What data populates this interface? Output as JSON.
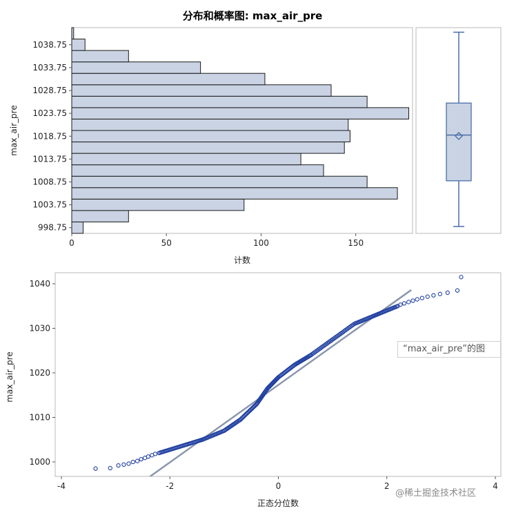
{
  "title": "分布和概率图: max_air_pre",
  "watermark": "@稀土掘金技术社区",
  "chart_data": [
    {
      "type": "bar",
      "orientation": "horizontal",
      "name": "histogram",
      "ylabel": "max_air_pre",
      "xlabel": "计数",
      "bin_width": 2.5,
      "bins": [
        {
          "mid": 998.75,
          "count": 6
        },
        {
          "mid": 1001.25,
          "count": 30
        },
        {
          "mid": 1003.75,
          "count": 91
        },
        {
          "mid": 1006.25,
          "count": 172
        },
        {
          "mid": 1008.75,
          "count": 156
        },
        {
          "mid": 1011.25,
          "count": 133
        },
        {
          "mid": 1013.75,
          "count": 121
        },
        {
          "mid": 1016.25,
          "count": 144
        },
        {
          "mid": 1018.75,
          "count": 147
        },
        {
          "mid": 1021.25,
          "count": 146
        },
        {
          "mid": 1023.75,
          "count": 178
        },
        {
          "mid": 1026.25,
          "count": 156
        },
        {
          "mid": 1028.75,
          "count": 137
        },
        {
          "mid": 1031.25,
          "count": 102
        },
        {
          "mid": 1033.75,
          "count": 68
        },
        {
          "mid": 1036.25,
          "count": 30
        },
        {
          "mid": 1038.75,
          "count": 7
        },
        {
          "mid": 1041.25,
          "count": 1
        }
      ],
      "y_ticks": [
        998.75,
        1003.75,
        1008.75,
        1013.75,
        1018.75,
        1023.75,
        1028.75,
        1033.75,
        1038.75
      ],
      "x_ticks": [
        0,
        50,
        100,
        150
      ],
      "xlim": [
        0,
        180
      ],
      "ylim": [
        997.5,
        1042.5
      ],
      "colors": {
        "fill": "#c9d3e3",
        "stroke": "#1a1a1a"
      }
    },
    {
      "type": "boxplot",
      "name": "boxplot",
      "min": 999,
      "q1": 1009,
      "median": 1019,
      "mean": 1018.8,
      "q3": 1026,
      "max": 1041.5,
      "ylim": [
        997.5,
        1042.5
      ],
      "colors": {
        "fill": "#c9d3e3",
        "stroke": "#4a6ea8"
      }
    },
    {
      "type": "scatter",
      "name": "normal-probability-plot",
      "xlabel": "正态分位数",
      "ylabel": "max_air_pre",
      "legend": "“max_air_pre”的图",
      "x_ticks": [
        -4,
        -2,
        0,
        2,
        4
      ],
      "y_ticks": [
        1000,
        1010,
        1020,
        1030,
        1040
      ],
      "xlim": [
        -4,
        4
      ],
      "ylim": [
        997,
        1043
      ],
      "reference_line": {
        "intercept": 1017.3,
        "slope": 8.7
      },
      "quantile_curve": [
        {
          "x": -2.2,
          "y": 1002.0
        },
        {
          "x": -1.8,
          "y": 1003.5
        },
        {
          "x": -1.4,
          "y": 1005.0
        },
        {
          "x": -1.0,
          "y": 1007.0
        },
        {
          "x": -0.7,
          "y": 1009.5
        },
        {
          "x": -0.4,
          "y": 1013.0
        },
        {
          "x": -0.2,
          "y": 1016.5
        },
        {
          "x": 0.0,
          "y": 1019.0
        },
        {
          "x": 0.3,
          "y": 1021.8
        },
        {
          "x": 0.6,
          "y": 1024.0
        },
        {
          "x": 1.0,
          "y": 1027.5
        },
        {
          "x": 1.4,
          "y": 1031.0
        },
        {
          "x": 1.8,
          "y": 1033.0
        },
        {
          "x": 2.2,
          "y": 1035.0
        }
      ],
      "tail_points": [
        {
          "x": -3.37,
          "y": 998.5
        },
        {
          "x": -3.1,
          "y": 998.6
        },
        {
          "x": -2.95,
          "y": 999.2
        },
        {
          "x": -2.85,
          "y": 999.4
        },
        {
          "x": -2.76,
          "y": 999.6
        },
        {
          "x": -2.68,
          "y": 1000.0
        },
        {
          "x": -2.6,
          "y": 1000.2
        },
        {
          "x": -2.53,
          "y": 1000.6
        },
        {
          "x": -2.46,
          "y": 1000.9
        },
        {
          "x": -2.4,
          "y": 1001.2
        },
        {
          "x": -2.33,
          "y": 1001.5
        },
        {
          "x": -2.27,
          "y": 1001.8
        },
        {
          "x": 2.25,
          "y": 1035.3
        },
        {
          "x": 2.32,
          "y": 1035.6
        },
        {
          "x": 2.4,
          "y": 1035.9
        },
        {
          "x": 2.48,
          "y": 1036.2
        },
        {
          "x": 2.56,
          "y": 1036.5
        },
        {
          "x": 2.65,
          "y": 1036.8
        },
        {
          "x": 2.75,
          "y": 1037.1
        },
        {
          "x": 2.86,
          "y": 1037.4
        },
        {
          "x": 2.98,
          "y": 1037.7
        },
        {
          "x": 3.12,
          "y": 1038.0
        },
        {
          "x": 3.3,
          "y": 1038.5
        },
        {
          "x": 3.37,
          "y": 1041.5
        }
      ],
      "colors": {
        "marker": "#1f3fa0",
        "line": "#8a96ad"
      }
    }
  ]
}
